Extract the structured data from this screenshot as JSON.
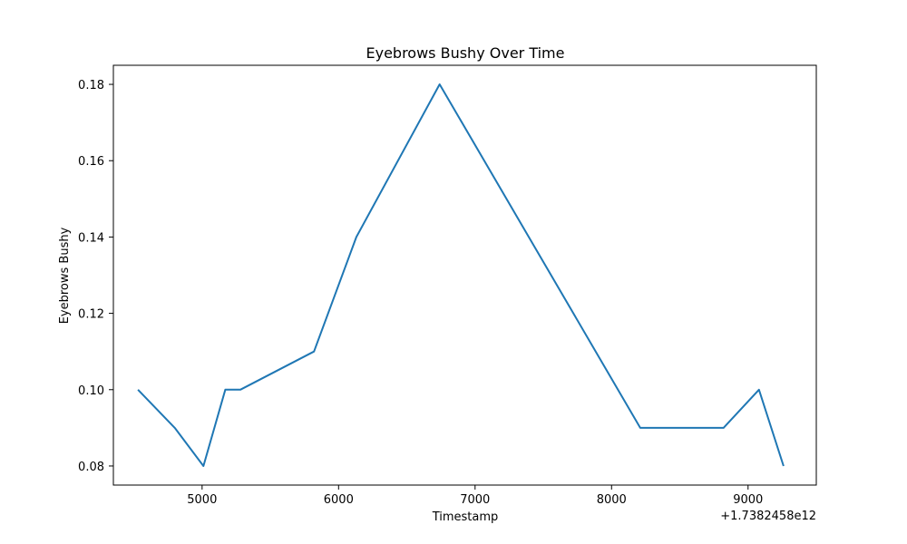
{
  "chart_data": {
    "type": "line",
    "title": "Eyebrows Bushy Over Time",
    "xlabel": "Timestamp",
    "ylabel": "Eyebrows Bushy",
    "x_offset_label": "+1.7382458e12",
    "xlim": [
      4350,
      9500
    ],
    "ylim": [
      0.075,
      0.185
    ],
    "xticks": [
      5000,
      6000,
      7000,
      8000,
      9000
    ],
    "xtick_labels": [
      "5000",
      "6000",
      "7000",
      "8000",
      "9000"
    ],
    "yticks": [
      0.08,
      0.1,
      0.12,
      0.14,
      0.16,
      0.18
    ],
    "ytick_labels": [
      "0.08",
      "0.10",
      "0.12",
      "0.14",
      "0.16",
      "0.18"
    ],
    "grid": false,
    "series": [
      {
        "name": "Eyebrows Bushy",
        "color": "#1f77b4",
        "x": [
          4530,
          4800,
          5010,
          5170,
          5280,
          5820,
          6130,
          6740,
          8210,
          8820,
          9080,
          9260
        ],
        "y": [
          0.1,
          0.09,
          0.08,
          0.1,
          0.1,
          0.11,
          0.14,
          0.18,
          0.09,
          0.09,
          0.1,
          0.08
        ]
      }
    ]
  }
}
